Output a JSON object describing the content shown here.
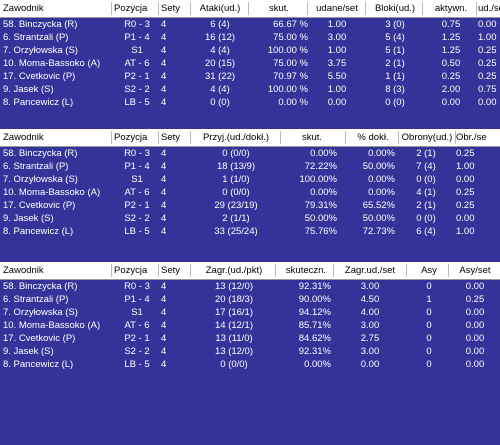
{
  "table1": {
    "headers": [
      "Zawodnik",
      "Pozycja",
      "Sety",
      "Ataki(ud.)",
      "skut.",
      "udane/set",
      "Bloki(ud.)",
      "aktywn.",
      "ud./se"
    ],
    "rows": [
      [
        "58. Binczycka (R)",
        "R0 - 3",
        "4",
        "6 (4)",
        "66.67 %",
        "1.00",
        "3 (0)",
        "0.75",
        "0.00"
      ],
      [
        "6. Strantzali (P)",
        "P1 - 4",
        "4",
        "16 (12)",
        "75.00 %",
        "3.00",
        "5 (4)",
        "1.25",
        "1.00"
      ],
      [
        "7. Orzyłowska (S)",
        "S1",
        "4",
        "4 (4)",
        "100.00 %",
        "1.00",
        "5 (1)",
        "1.25",
        "0.25"
      ],
      [
        "10. Moma-Bassoko (A)",
        "AT - 6",
        "4",
        "20 (15)",
        "75.00 %",
        "3.75",
        "2 (1)",
        "0.50",
        "0.25"
      ],
      [
        "17. Cvetkovic (P)",
        "P2 - 1",
        "4",
        "31 (22)",
        "70.97 %",
        "5.50",
        "1 (1)",
        "0.25",
        "0.25"
      ],
      [
        "9. Jasek (S)",
        "S2 - 2",
        "4",
        "4 (4)",
        "100.00 %",
        "1.00",
        "8 (3)",
        "2.00",
        "0.75"
      ],
      [
        "8. Pancewicz (L)",
        "LB - 5",
        "4",
        "0 (0)",
        "0.00 %",
        "0.00",
        "0 (0)",
        "0.00",
        "0.00"
      ]
    ]
  },
  "table2": {
    "headers": [
      "Zawodnik",
      "Pozycja",
      "Sety",
      "Przyj.(ud./dokł.)",
      "skut.",
      "% dokł.",
      "Obrony(ud.)",
      "Obr./se"
    ],
    "rows": [
      [
        "58. Binczycka (R)",
        "R0 - 3",
        "4",
        "0 (0/0)",
        "0.00%",
        "0.00%",
        "2 (1)",
        "0.25"
      ],
      [
        "6. Strantzali (P)",
        "P1 - 4",
        "4",
        "18 (13/9)",
        "72.22%",
        "50.00%",
        "7 (4)",
        "1.00"
      ],
      [
        "7. Orzyłowska (S)",
        "S1",
        "4",
        "1 (1/0)",
        "100.00%",
        "0.00%",
        "0 (0)",
        "0.00"
      ],
      [
        "10. Moma-Bassoko (A)",
        "AT - 6",
        "4",
        "0 (0/0)",
        "0.00%",
        "0.00%",
        "4 (1)",
        "0.25"
      ],
      [
        "17. Cvetkovic (P)",
        "P2 - 1",
        "4",
        "29 (23/19)",
        "79.31%",
        "65.52%",
        "2 (1)",
        "0.25"
      ],
      [
        "9. Jasek (S)",
        "S2 - 2",
        "4",
        "2 (1/1)",
        "50.00%",
        "50.00%",
        "0 (0)",
        "0.00"
      ],
      [
        "8. Pancewicz (L)",
        "LB - 5",
        "4",
        "33 (25/24)",
        "75.76%",
        "72.73%",
        "6 (4)",
        "1.00"
      ]
    ]
  },
  "table3": {
    "headers": [
      "Zawodnik",
      "Pozycja",
      "Sety",
      "Zagr.(ud./pkt)",
      "skuteczn.",
      "Zagr.ud./set",
      "Asy",
      "Asy/set"
    ],
    "rows": [
      [
        "58. Binczycka (R)",
        "R0 - 3",
        "4",
        "13 (12/0)",
        "92.31%",
        "3.00",
        "0",
        "0.00"
      ],
      [
        "6. Strantzali (P)",
        "P1 - 4",
        "4",
        "20 (18/3)",
        "90.00%",
        "4.50",
        "1",
        "0.25"
      ],
      [
        "7. Orzyłowska (S)",
        "S1",
        "4",
        "17 (16/1)",
        "94.12%",
        "4.00",
        "0",
        "0.00"
      ],
      [
        "10. Moma-Bassoko (A)",
        "AT - 6",
        "4",
        "14 (12/1)",
        "85.71%",
        "3.00",
        "0",
        "0.00"
      ],
      [
        "17. Cvetkovic (P)",
        "P2 - 1",
        "4",
        "13 (11/0)",
        "84.62%",
        "2.75",
        "0",
        "0.00"
      ],
      [
        "9. Jasek (S)",
        "S2 - 2",
        "4",
        "13 (12/0)",
        "92.31%",
        "3.00",
        "0",
        "0.00"
      ],
      [
        "8. Pancewicz (L)",
        "LB - 5",
        "4",
        "0 (0/0)",
        "0.00%",
        "0.00",
        "0",
        "0.00"
      ]
    ]
  }
}
